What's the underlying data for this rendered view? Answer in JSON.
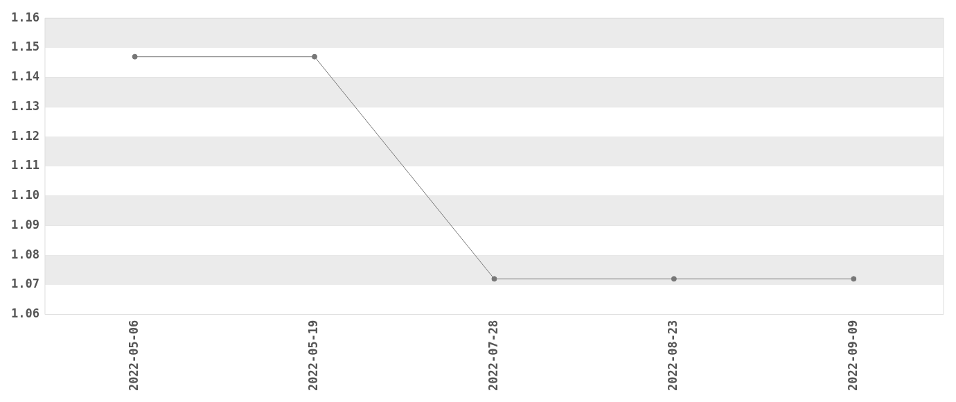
{
  "chart_data": {
    "type": "line",
    "categories": [
      "2022-05-06",
      "2022-05-19",
      "2022-07-28",
      "2022-08-23",
      "2022-09-09"
    ],
    "series": [
      {
        "color": "#777777",
        "values": [
          1.147,
          1.147,
          1.072,
          1.072,
          1.072
        ]
      }
    ],
    "ylim": [
      1.06,
      1.16
    ],
    "yticks": [
      1.06,
      1.07,
      1.08,
      1.09,
      {
        "value": 1.1,
        "label": "1.10"
      },
      1.11,
      1.12,
      1.13,
      1.14,
      1.15,
      1.16
    ],
    "grid": "y",
    "legend": false,
    "marker": "circle",
    "line_style": "solid"
  }
}
